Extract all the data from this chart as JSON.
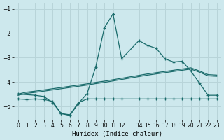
{
  "xlabel": "Humidex (Indice chaleur)",
  "bg_color": "#cde8ed",
  "grid_color": "#b8d4d9",
  "line_color": "#1a6b6b",
  "xlim": [
    -0.5,
    23.5
  ],
  "ylim": [
    -5.55,
    -0.75
  ],
  "xticks": [
    0,
    1,
    2,
    3,
    4,
    5,
    6,
    7,
    8,
    9,
    10,
    11,
    12,
    14,
    15,
    16,
    17,
    18,
    19,
    20,
    21,
    22,
    23
  ],
  "yticks": [
    -1,
    -2,
    -3,
    -4,
    -5
  ],
  "line_main_x": [
    0,
    2,
    3,
    4,
    5,
    6,
    7,
    8,
    9,
    10,
    11,
    12,
    14,
    15,
    16,
    17,
    18,
    19,
    20,
    21,
    22,
    23
  ],
  "line_main_y": [
    -4.5,
    -4.55,
    -4.6,
    -4.85,
    -5.3,
    -5.38,
    -4.88,
    -4.48,
    -3.38,
    -1.77,
    -1.2,
    -3.05,
    -2.3,
    -2.5,
    -2.62,
    -3.05,
    -3.18,
    -3.15,
    -3.55,
    -4.05,
    -4.55,
    -4.55
  ],
  "line_flat_x": [
    0,
    1,
    2,
    3,
    4,
    5,
    6,
    7,
    8,
    9,
    10,
    11,
    12,
    14,
    15,
    16,
    17,
    18,
    19,
    20,
    21,
    22,
    23
  ],
  "line_flat_y": [
    -4.7,
    -4.72,
    -4.7,
    -4.72,
    -4.8,
    -5.3,
    -5.35,
    -4.85,
    -4.7,
    -4.7,
    -4.7,
    -4.7,
    -4.7,
    -4.7,
    -4.7,
    -4.7,
    -4.7,
    -4.7,
    -4.7,
    -4.7,
    -4.7,
    -4.7,
    -4.7
  ],
  "line_diag1_x": [
    0,
    1,
    2,
    3,
    4,
    5,
    6,
    7,
    8,
    9,
    10,
    11,
    12,
    14,
    15,
    16,
    17,
    18,
    19,
    20,
    21,
    22,
    23
  ],
  "line_diag1_y": [
    -4.5,
    -4.42,
    -4.38,
    -4.33,
    -4.28,
    -4.23,
    -4.18,
    -4.13,
    -4.08,
    -4.02,
    -3.97,
    -3.91,
    -3.85,
    -3.73,
    -3.67,
    -3.62,
    -3.57,
    -3.52,
    -3.47,
    -3.42,
    -3.55,
    -3.7,
    -3.72
  ],
  "line_diag2_x": [
    0,
    1,
    2,
    3,
    4,
    5,
    6,
    7,
    8,
    9,
    10,
    11,
    12,
    14,
    15,
    16,
    17,
    18,
    19,
    20,
    21,
    22,
    23
  ],
  "line_diag2_y": [
    -4.55,
    -4.47,
    -4.43,
    -4.38,
    -4.33,
    -4.28,
    -4.23,
    -4.18,
    -4.13,
    -4.07,
    -4.02,
    -3.96,
    -3.9,
    -3.78,
    -3.72,
    -3.67,
    -3.62,
    -3.57,
    -3.52,
    -3.47,
    -3.6,
    -3.75,
    -3.77
  ]
}
